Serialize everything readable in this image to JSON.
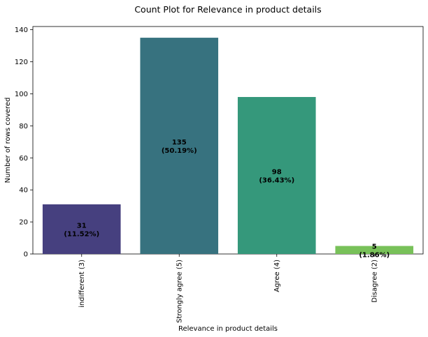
{
  "chart_data": {
    "type": "bar",
    "title": "Count Plot for Relevance in product details",
    "xlabel": "Relevance in product details",
    "ylabel": "Number of rows covered",
    "categories": [
      "indifferent (3)",
      "Strongly agree (5)",
      "Agree (4)",
      "Disagree (2)"
    ],
    "values": [
      31,
      135,
      98,
      5
    ],
    "percent_labels": [
      "(11.52%)",
      "(50.19%)",
      "(36.43%)",
      "(1.86%)"
    ],
    "colors": [
      "#46407f",
      "#37727f",
      "#35987b",
      "#78c159"
    ],
    "ylim": [
      0,
      142
    ],
    "yticks": [
      0,
      20,
      40,
      60,
      80,
      100,
      120,
      140
    ],
    "grid": false,
    "legend": "none"
  }
}
